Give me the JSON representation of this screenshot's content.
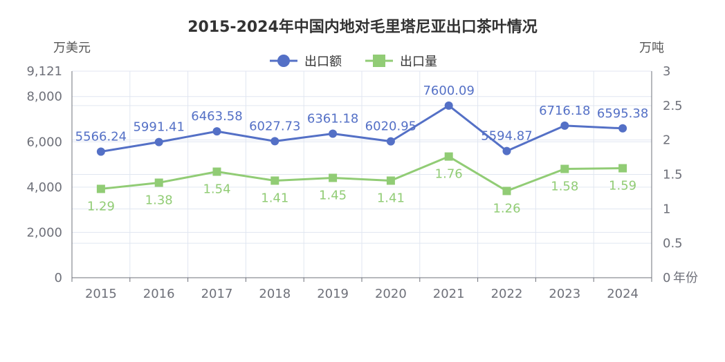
{
  "chart_data": {
    "type": "line",
    "title": "2015-2024年中国内地对毛里塔尼亚出口茶叶情况",
    "x_axis_name": "年份",
    "y_left_unit": "万美元",
    "y_right_unit": "万吨",
    "categories": [
      "2015",
      "2016",
      "2017",
      "2018",
      "2019",
      "2020",
      "2021",
      "2022",
      "2023",
      "2024"
    ],
    "series": [
      {
        "name": "出口额",
        "axis": "left",
        "color": "#5470c6",
        "marker": "circle",
        "values": [
          5566.24,
          5991.41,
          6463.58,
          6027.73,
          6361.18,
          6020.95,
          7600.09,
          5594.87,
          6716.18,
          6595.38
        ],
        "labels": [
          "5566.24",
          "5991.41",
          "6463.58",
          "6027.73",
          "6361.18",
          "6020.95",
          "7600.09",
          "5594.87",
          "6716.18",
          "6595.38"
        ]
      },
      {
        "name": "出口量",
        "axis": "right",
        "color": "#91cc75",
        "marker": "square",
        "values": [
          1.29,
          1.38,
          1.54,
          1.41,
          1.45,
          1.41,
          1.76,
          1.26,
          1.58,
          1.59
        ],
        "labels": [
          "1.29",
          "1.38",
          "1.54",
          "1.41",
          "1.45",
          "1.41",
          "1.76",
          "1.26",
          "1.58",
          "1.59"
        ]
      }
    ],
    "y_left": {
      "min": 0,
      "max": 9121,
      "ticks": [
        0,
        2000,
        4000,
        6000,
        8000,
        9121
      ],
      "tick_labels": [
        "0",
        "2,000",
        "4,000",
        "6,000",
        "8,000",
        "9,121"
      ]
    },
    "y_right": {
      "min": 0,
      "max": 3,
      "ticks": [
        0,
        0.5,
        1,
        1.5,
        2,
        2.5,
        3
      ],
      "tick_labels": [
        "0",
        "0.5",
        "1",
        "1.5",
        "2",
        "2.5",
        "3"
      ]
    },
    "legend_position": "top-center",
    "grid": true,
    "grid_color": "#e0e6f1",
    "axis_color": "#6e7079"
  }
}
